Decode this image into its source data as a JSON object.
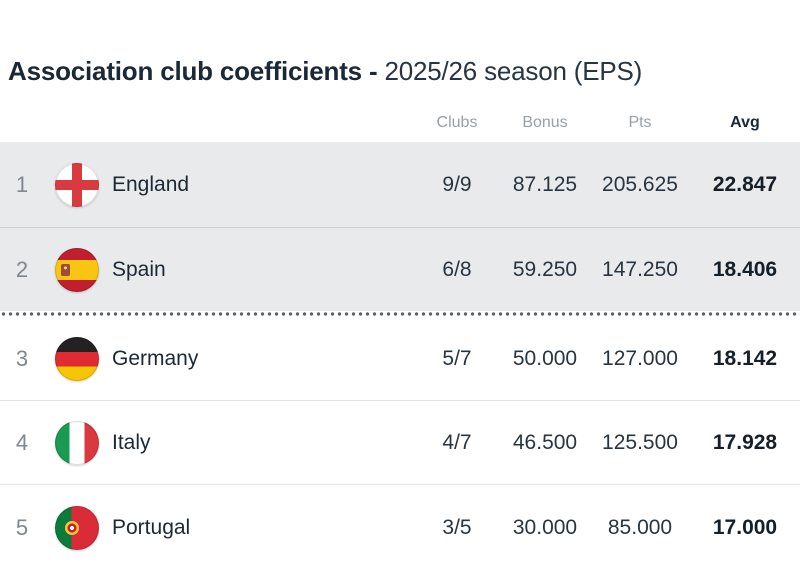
{
  "title": {
    "main": "Association club coefficients -",
    "season": "2025/26 season (EPS)"
  },
  "table": {
    "headers": {
      "clubs": "Clubs",
      "bonus": "Bonus",
      "pts": "Pts",
      "avg": "Avg"
    },
    "rows": [
      {
        "rank": "1",
        "country": "England",
        "flag": "england",
        "clubs": "9/9",
        "bonus": "87.125",
        "pts": "205.625",
        "avg": "22.847",
        "highlighted": true
      },
      {
        "rank": "2",
        "country": "Spain",
        "flag": "spain",
        "clubs": "6/8",
        "bonus": "59.250",
        "pts": "147.250",
        "avg": "18.406",
        "highlighted": true
      },
      {
        "rank": "3",
        "country": "Germany",
        "flag": "germany",
        "clubs": "5/7",
        "bonus": "50.000",
        "pts": "127.000",
        "avg": "18.142",
        "highlighted": false
      },
      {
        "rank": "4",
        "country": "Italy",
        "flag": "italy",
        "clubs": "4/7",
        "bonus": "46.500",
        "pts": "125.500",
        "avg": "17.928",
        "highlighted": false
      },
      {
        "rank": "5",
        "country": "Portugal",
        "flag": "portugal",
        "clubs": "3/5",
        "bonus": "30.000",
        "pts": "85.000",
        "avg": "17.000",
        "highlighted": false
      }
    ]
  },
  "colors": {
    "highlight_row_bg": "#e8eaec",
    "title_text": "#1b2835",
    "muted_header_text": "#99a0a7",
    "rank_text": "#7f878f",
    "dotted_separator": "#5c646b",
    "row_divider": "#e3e6e8"
  }
}
